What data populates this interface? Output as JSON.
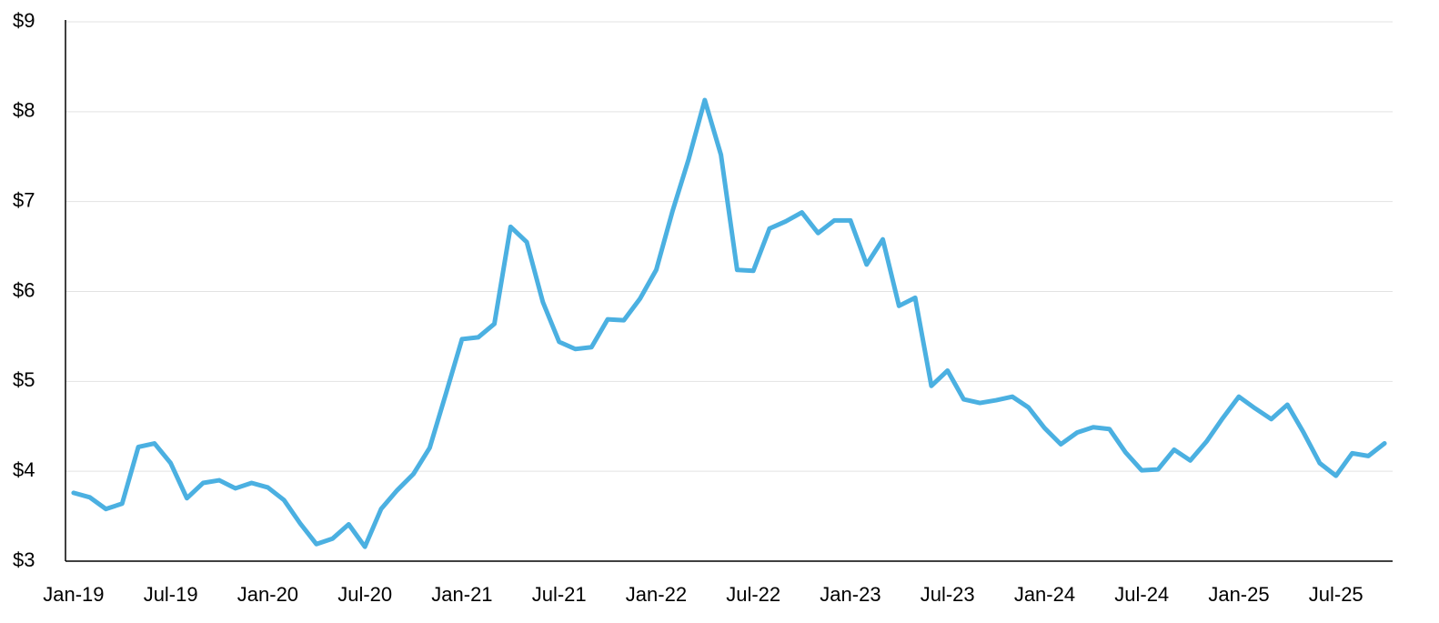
{
  "chart_data": {
    "type": "line",
    "categories": [
      "Jan-19",
      null,
      null,
      null,
      null,
      null,
      "Jul-19",
      null,
      null,
      null,
      null,
      null,
      "Jan-20",
      null,
      null,
      null,
      null,
      null,
      "Jul-20",
      null,
      null,
      null,
      null,
      null,
      "Jan-21",
      null,
      null,
      null,
      null,
      null,
      "Jul-21",
      null,
      null,
      null,
      null,
      null,
      "Jan-22",
      null,
      null,
      null,
      null,
      null,
      "Jul-22",
      null,
      null,
      null,
      null,
      null,
      "Jan-23",
      null,
      null,
      null,
      null,
      null,
      "Jul-23",
      null,
      null,
      null,
      null,
      null,
      "Jan-24",
      null,
      null,
      null,
      null,
      null,
      "Jul-24",
      null,
      null,
      null,
      null,
      null,
      "Jan-25",
      null,
      null,
      null,
      null,
      null,
      "Jul-25",
      null,
      null,
      null
    ],
    "values": [
      3.76,
      3.71,
      3.58,
      3.64,
      4.27,
      4.31,
      4.09,
      3.7,
      3.87,
      3.9,
      3.81,
      3.87,
      3.82,
      3.68,
      3.42,
      3.19,
      3.25,
      3.41,
      3.16,
      3.58,
      3.79,
      3.97,
      4.26,
      4.86,
      5.47,
      5.49,
      5.64,
      6.72,
      6.55,
      5.88,
      5.44,
      5.36,
      5.38,
      5.69,
      5.68,
      5.92,
      6.24,
      6.89,
      7.47,
      8.13,
      7.52,
      6.24,
      6.23,
      6.7,
      6.78,
      6.88,
      6.65,
      6.79,
      6.79,
      6.3,
      6.58,
      5.84,
      5.93,
      4.95,
      5.12,
      4.8,
      4.76,
      4.79,
      4.83,
      4.71,
      4.48,
      4.3,
      4.43,
      4.49,
      4.47,
      4.21,
      4.01,
      4.02,
      4.24,
      4.12,
      4.33,
      4.59,
      4.83,
      4.7,
      4.58,
      4.74,
      4.43,
      4.09,
      3.95,
      4.2,
      4.17,
      4.31
    ],
    "color": "#4bb0e1",
    "ylim": [
      3,
      9
    ],
    "yticks": [
      {
        "value": 3,
        "label": "$3"
      },
      {
        "value": 4,
        "label": "$4"
      },
      {
        "value": 5,
        "label": "$5"
      },
      {
        "value": 6,
        "label": "$6"
      },
      {
        "value": 7,
        "label": "$7"
      },
      {
        "value": 8,
        "label": "$8"
      },
      {
        "value": 9,
        "label": "$9"
      }
    ],
    "grid": true
  }
}
